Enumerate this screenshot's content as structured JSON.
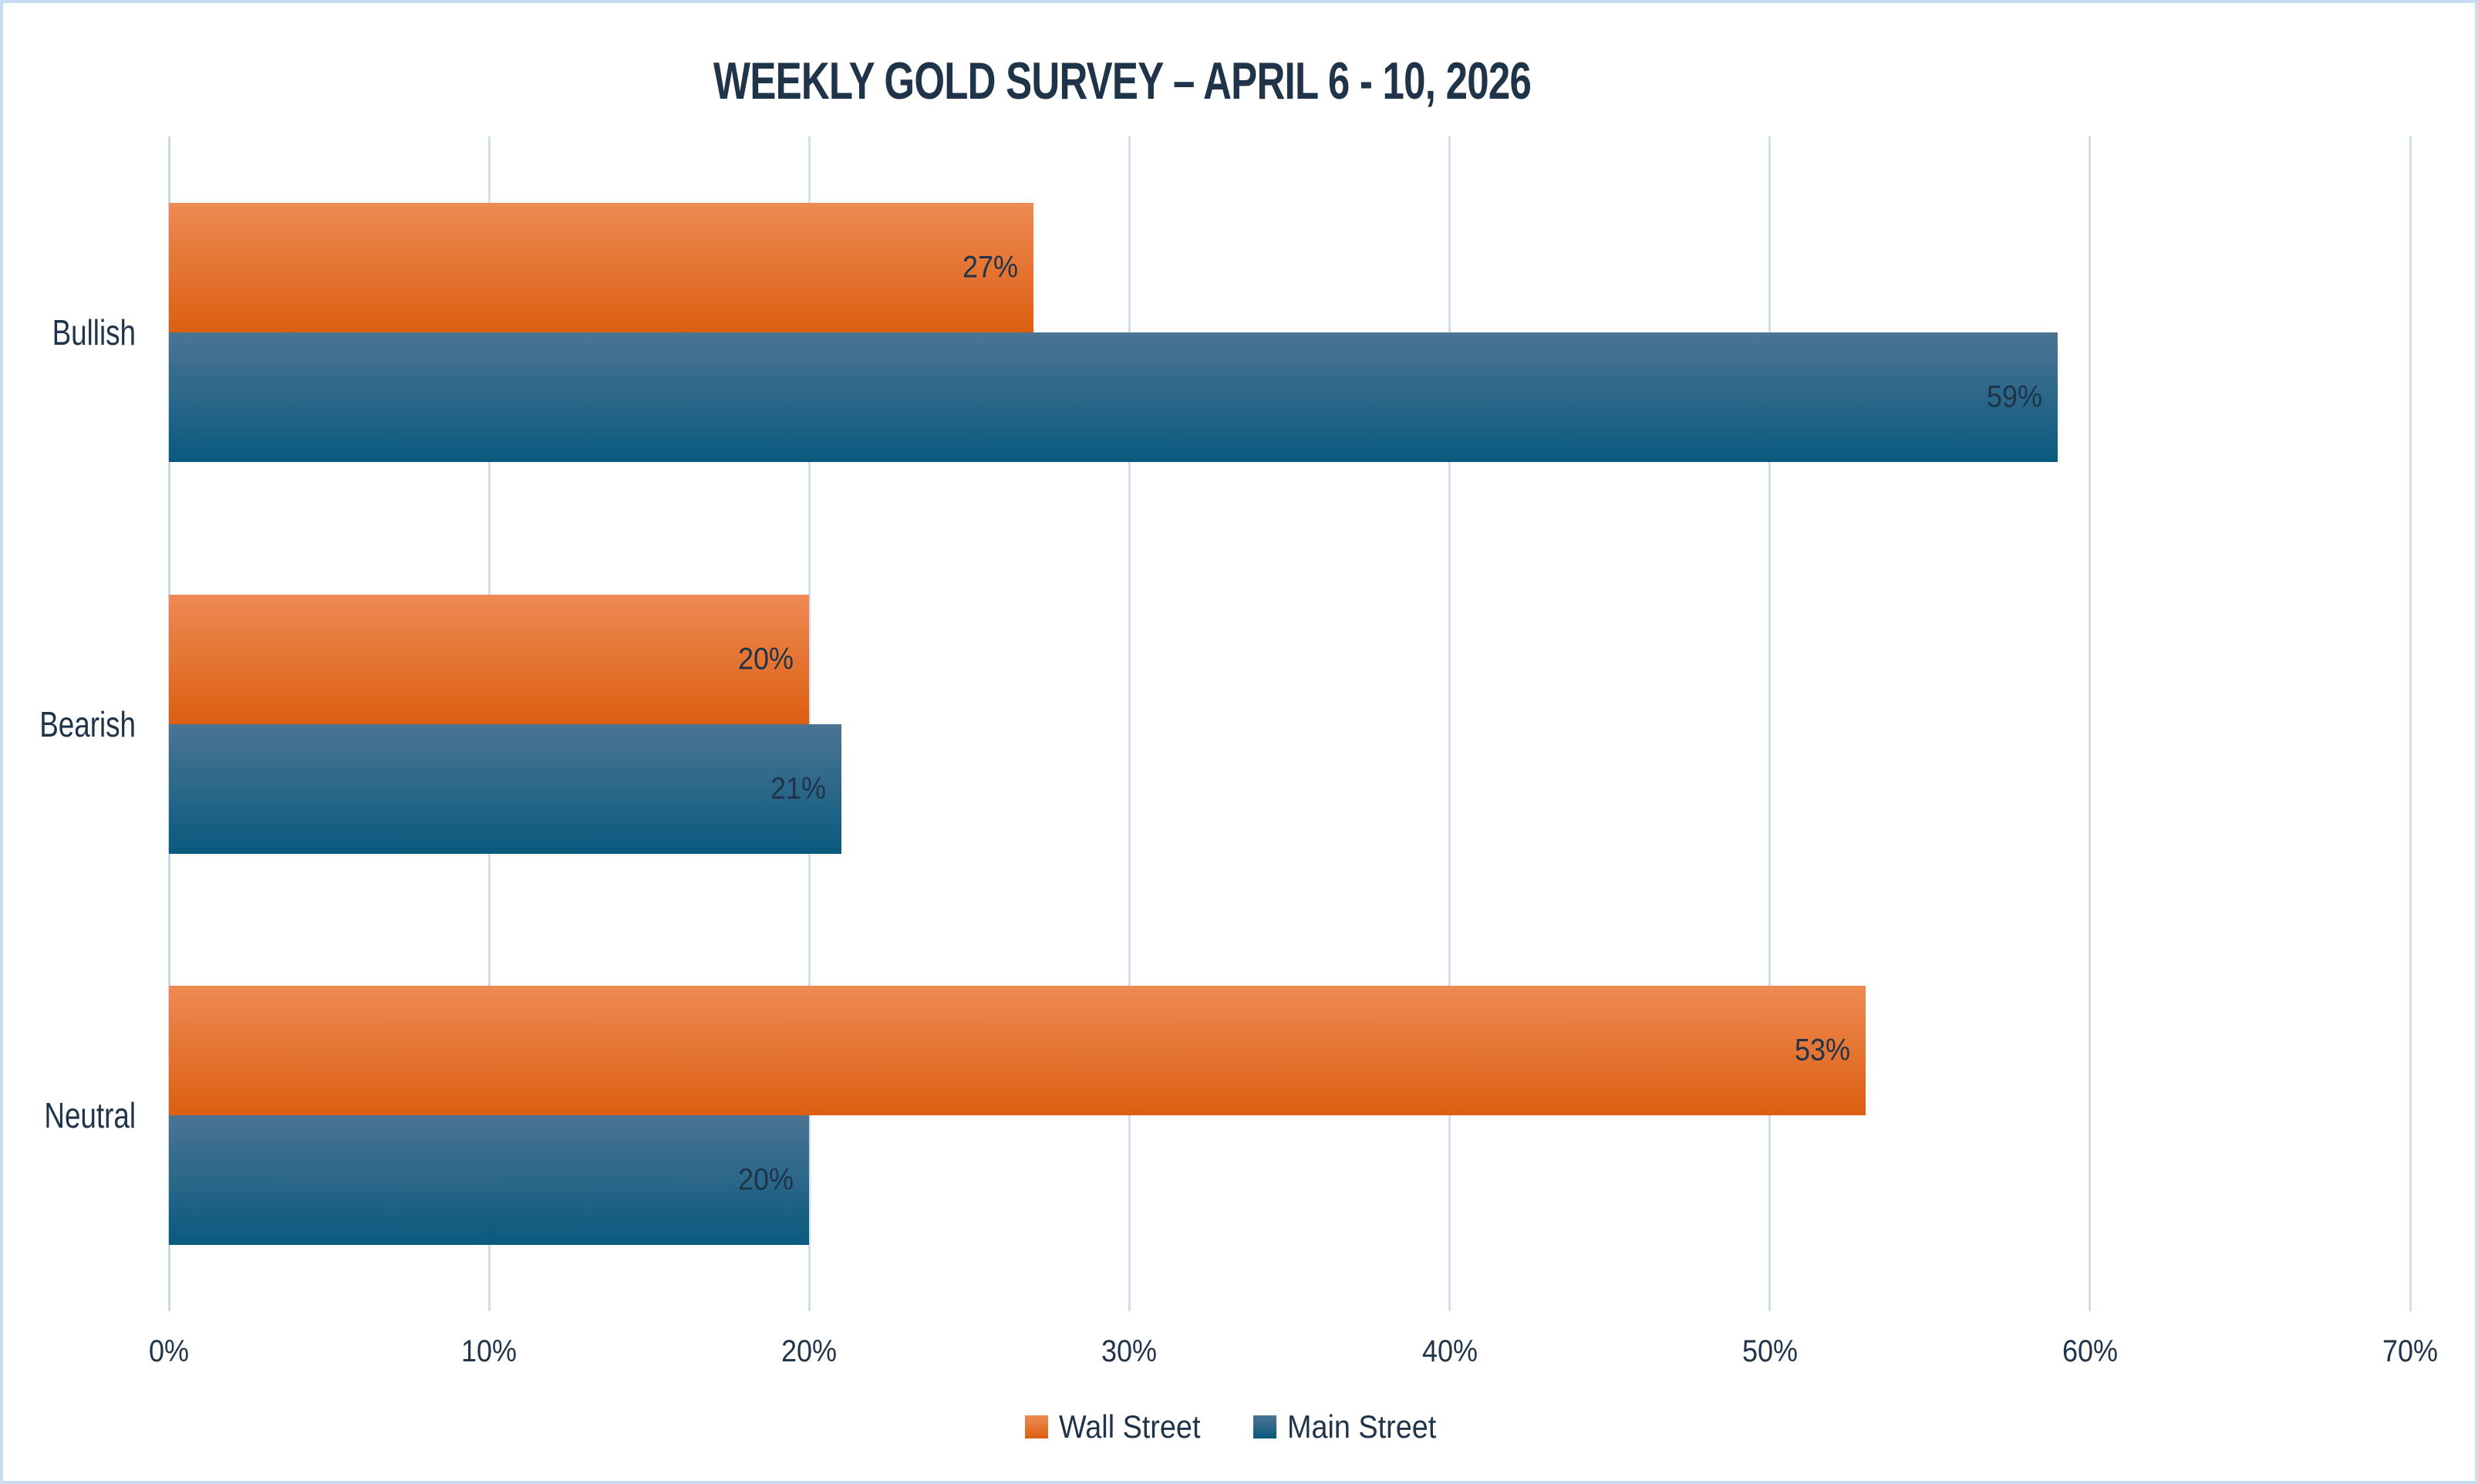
{
  "title": "WEEKLY GOLD SURVEY – APRIL 6 - 10, 2026",
  "chart_data": {
    "type": "bar",
    "orientation": "horizontal",
    "title": "WEEKLY GOLD SURVEY – APRIL 6 - 10, 2026",
    "categories": [
      "Bullish",
      "Bearish",
      "Neutral"
    ],
    "series": [
      {
        "name": "Wall Street",
        "values": [
          27,
          20,
          53
        ],
        "value_labels": [
          "27%",
          "20%",
          "53%"
        ],
        "color_top": "#EE8A54",
        "color_bottom": "#DC5F11"
      },
      {
        "name": "Main Street",
        "values": [
          59,
          21,
          20
        ],
        "value_labels": [
          "59%",
          "21%",
          "20%"
        ],
        "color_top": "#4C7493",
        "color_bottom": "#095A7E"
      }
    ],
    "xlim": [
      0,
      70
    ],
    "x_tick_values": [
      0,
      10,
      20,
      30,
      40,
      50,
      60,
      70
    ],
    "x_tick_labels": [
      "0%",
      "10%",
      "20%",
      "30%",
      "40%",
      "50%",
      "60%",
      "70%"
    ],
    "grid": true,
    "value_label_position": "inside-end",
    "legend_position": "bottom"
  },
  "colors": {
    "text": "#1F3349",
    "grid": "#CEDFF2",
    "axis_line": "#C5D9EF",
    "border": "#C8DCF2",
    "background": "#FFFFFF"
  }
}
